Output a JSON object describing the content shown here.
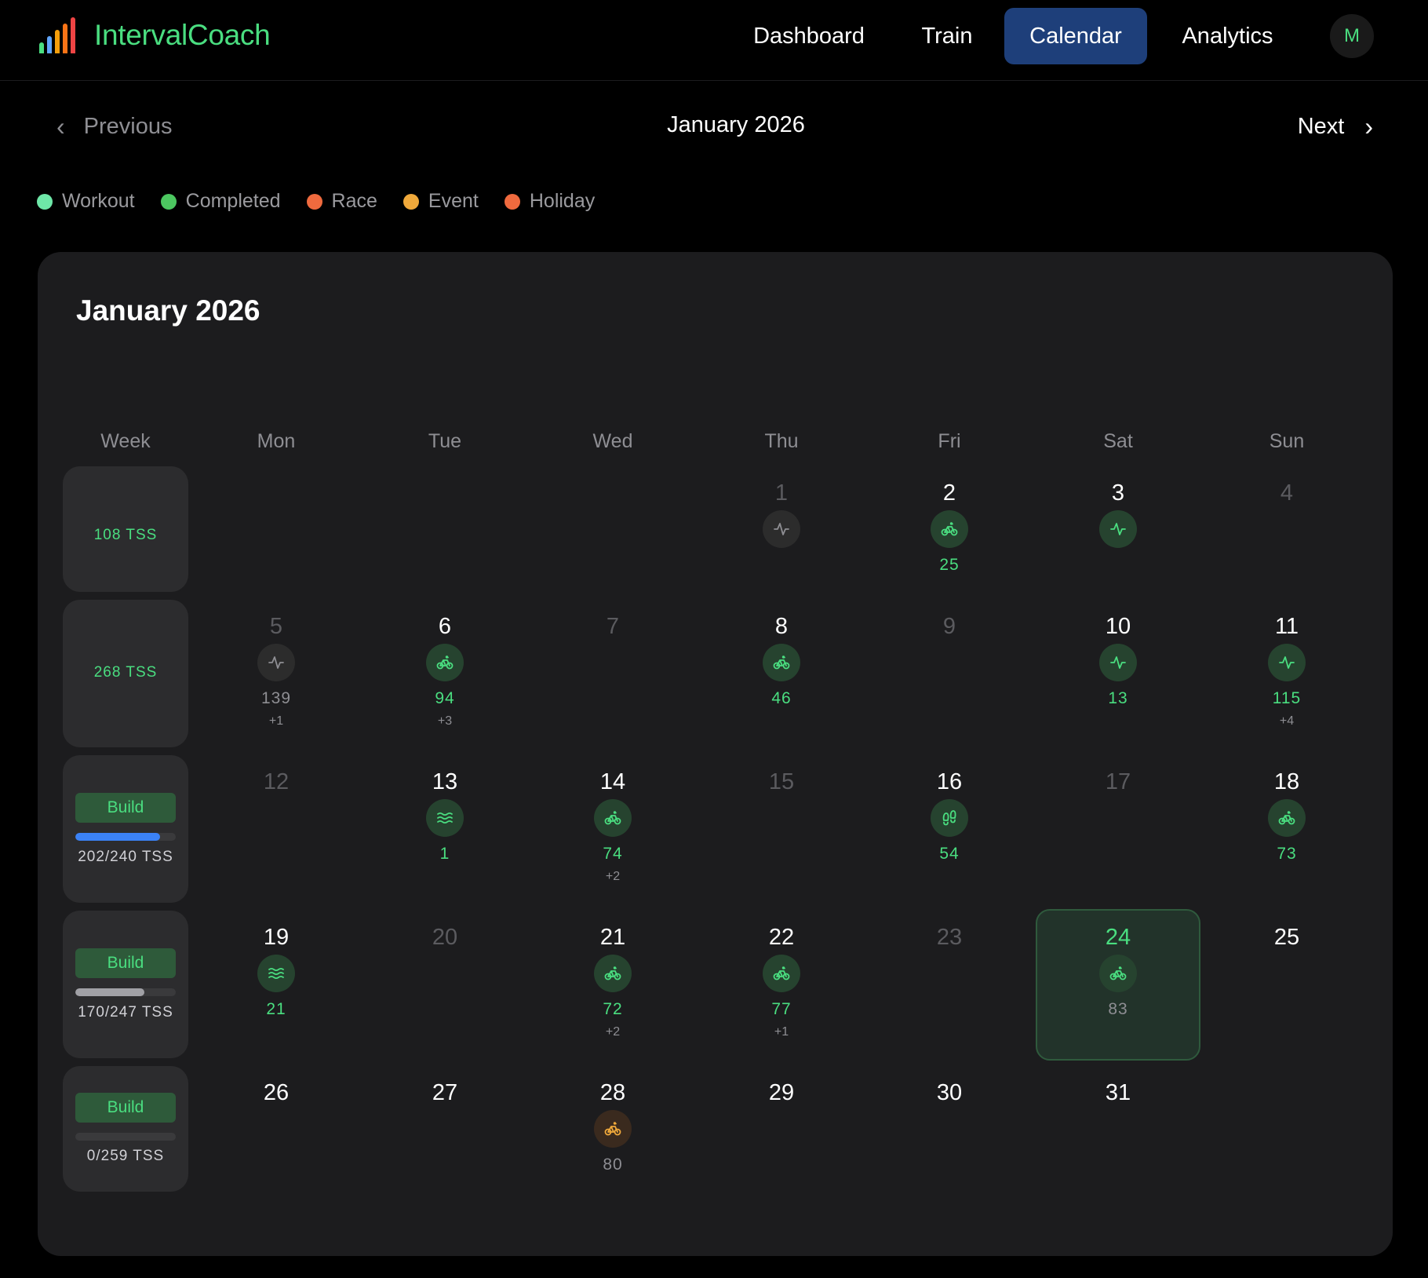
{
  "app": {
    "name": "IntervalCoach",
    "logo_colors": [
      "#4ade80",
      "#60a5fa",
      "#f59e0b",
      "#f97316",
      "#ef4444"
    ]
  },
  "nav": {
    "items": [
      {
        "label": "Dashboard",
        "active": false
      },
      {
        "label": "Train",
        "active": false
      },
      {
        "label": "Calendar",
        "active": true
      },
      {
        "label": "Analytics",
        "active": false
      }
    ],
    "avatar": "M"
  },
  "month_nav": {
    "previous": "Previous",
    "title": "January 2026",
    "next": "Next"
  },
  "legend": [
    {
      "label": "Workout",
      "color": "#6ee7a8"
    },
    {
      "label": "Completed",
      "color": "#4cc760"
    },
    {
      "label": "Race",
      "color": "#ef6a3e"
    },
    {
      "label": "Event",
      "color": "#f0a93b"
    },
    {
      "label": "Holiday",
      "color": "#ef6a3e"
    }
  ],
  "calendar": {
    "title": "January 2026",
    "week_header": "Week",
    "days_of_week": [
      "Mon",
      "Tue",
      "Wed",
      "Thu",
      "Fri",
      "Sat",
      "Sun"
    ],
    "weeks": [
      {
        "tss_label": "108 TSS",
        "phase": null,
        "progress": null
      },
      {
        "tss_label": "268 TSS",
        "phase": null,
        "progress": null
      },
      {
        "tss_label": "202/240 TSS",
        "phase": "Build",
        "progress": 0.84,
        "progress_color": "#3b82f6"
      },
      {
        "tss_label": "170/247 TSS",
        "phase": "Build",
        "progress": 0.69,
        "progress_color": "#a1a1a6"
      },
      {
        "tss_label": "0/259 TSS",
        "phase": "Build",
        "progress": 0.0,
        "progress_color": "#a1a1a6"
      }
    ],
    "days": [
      {
        "num": "1",
        "dim": true,
        "icon": "pulse-icon",
        "icon_style": "muted",
        "tss": null,
        "more": null
      },
      {
        "num": "2",
        "dim": false,
        "icon": "bike-icon",
        "icon_style": "green",
        "tss": "25",
        "more": null
      },
      {
        "num": "3",
        "dim": false,
        "icon": "pulse-icon",
        "icon_style": "green",
        "tss": null,
        "more": null
      },
      {
        "num": "4",
        "dim": true,
        "icon": null,
        "tss": null,
        "more": null
      },
      {
        "num": "5",
        "dim": true,
        "icon": "pulse-icon",
        "icon_style": "muted",
        "tss": "139",
        "tss_style": "muted",
        "more": "+1"
      },
      {
        "num": "6",
        "dim": false,
        "icon": "bike-icon",
        "icon_style": "green",
        "tss": "94",
        "more": "+3"
      },
      {
        "num": "7",
        "dim": true,
        "icon": null,
        "tss": null,
        "more": null
      },
      {
        "num": "8",
        "dim": false,
        "icon": "bike-icon",
        "icon_style": "green",
        "tss": "46",
        "more": null
      },
      {
        "num": "9",
        "dim": true,
        "icon": null,
        "tss": null,
        "more": null
      },
      {
        "num": "10",
        "dim": false,
        "icon": "pulse-icon",
        "icon_style": "green",
        "tss": "13",
        "more": null
      },
      {
        "num": "11",
        "dim": false,
        "icon": "pulse-icon",
        "icon_style": "green",
        "tss": "115",
        "more": "+4"
      },
      {
        "num": "12",
        "dim": true,
        "icon": null,
        "tss": null,
        "more": null
      },
      {
        "num": "13",
        "dim": false,
        "icon": "swim-icon",
        "icon_style": "green",
        "tss": "1",
        "more": null
      },
      {
        "num": "14",
        "dim": false,
        "icon": "bike-icon",
        "icon_style": "green",
        "tss": "74",
        "more": "+2"
      },
      {
        "num": "15",
        "dim": true,
        "icon": null,
        "tss": null,
        "more": null
      },
      {
        "num": "16",
        "dim": false,
        "icon": "footprints-icon",
        "icon_style": "green",
        "tss": "54",
        "more": null
      },
      {
        "num": "17",
        "dim": true,
        "icon": null,
        "tss": null,
        "more": null
      },
      {
        "num": "18",
        "dim": false,
        "icon": "bike-icon",
        "icon_style": "green",
        "tss": "73",
        "more": null
      },
      {
        "num": "19",
        "dim": false,
        "icon": "swim-icon",
        "icon_style": "green",
        "tss": "21",
        "more": null
      },
      {
        "num": "20",
        "dim": true,
        "icon": null,
        "tss": null,
        "more": null
      },
      {
        "num": "21",
        "dim": false,
        "icon": "bike-icon",
        "icon_style": "green",
        "tss": "72",
        "more": "+2"
      },
      {
        "num": "22",
        "dim": false,
        "icon": "bike-icon",
        "icon_style": "green",
        "tss": "77",
        "more": "+1"
      },
      {
        "num": "23",
        "dim": true,
        "icon": null,
        "tss": null,
        "more": null
      },
      {
        "num": "24",
        "dim": false,
        "today": true,
        "icon": "bike-icon",
        "icon_style": "green",
        "tss": "83",
        "tss_style": "muted",
        "more": null
      },
      {
        "num": "25",
        "dim": false,
        "icon": null,
        "tss": null,
        "more": null
      },
      {
        "num": "26",
        "dim": false,
        "icon": null,
        "tss": null,
        "more": null
      },
      {
        "num": "27",
        "dim": false,
        "icon": null,
        "tss": null,
        "more": null
      },
      {
        "num": "28",
        "dim": false,
        "icon": "bike-icon",
        "icon_style": "orange",
        "tss": "80",
        "tss_style": "muted",
        "more": null
      },
      {
        "num": "29",
        "dim": false,
        "icon": null,
        "tss": null,
        "more": null
      },
      {
        "num": "30",
        "dim": false,
        "icon": null,
        "tss": null,
        "more": null
      },
      {
        "num": "31",
        "dim": false,
        "icon": null,
        "tss": null,
        "more": null
      }
    ]
  }
}
